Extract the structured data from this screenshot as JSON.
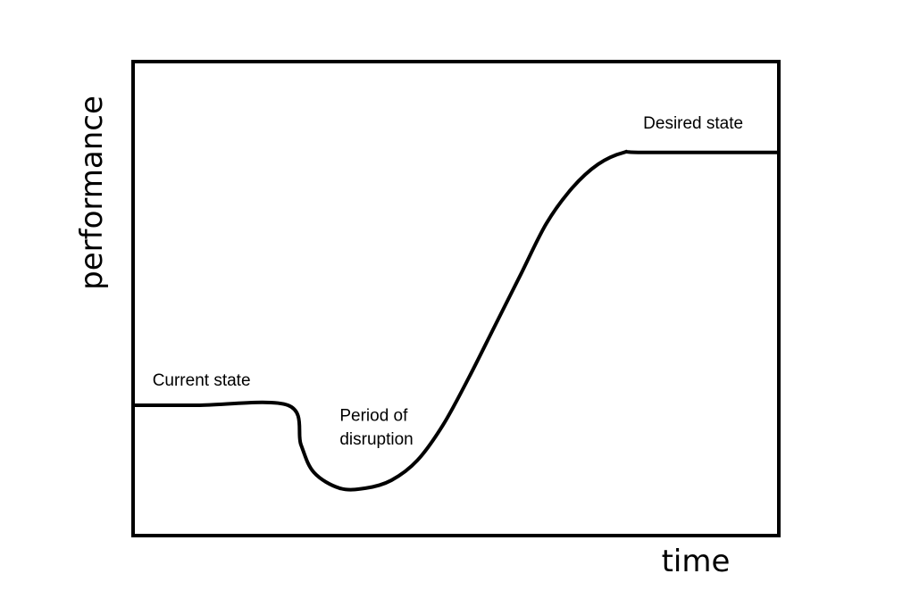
{
  "chart_data": {
    "type": "line",
    "title": "",
    "xlabel": "time",
    "ylabel": "performance",
    "grid": false,
    "legend": "none",
    "series": [
      {
        "x": [
          0,
          10,
          24,
          26,
          28,
          32,
          36,
          40,
          44,
          48,
          52,
          56,
          60,
          64,
          68,
          72,
          76,
          79,
          100
        ],
        "y": [
          33,
          33,
          33,
          23,
          16,
          12,
          12,
          14,
          19,
          28,
          40,
          53,
          66,
          79,
          88,
          94,
          97,
          97,
          97
        ]
      }
    ],
    "annotations": [
      {
        "text": "Current state",
        "x": 3,
        "y": 38
      },
      {
        "text": "Period of",
        "x": 32,
        "y": 29
      },
      {
        "text": "disruption",
        "x": 32,
        "y": 23
      },
      {
        "text": "Desired state",
        "x": 79,
        "y": 103
      }
    ],
    "xlim": [
      0,
      100
    ],
    "ylim": [
      0,
      120
    ],
    "colors": {
      "line": "#000000",
      "frame": "#000000",
      "background": "#ffffff"
    }
  }
}
